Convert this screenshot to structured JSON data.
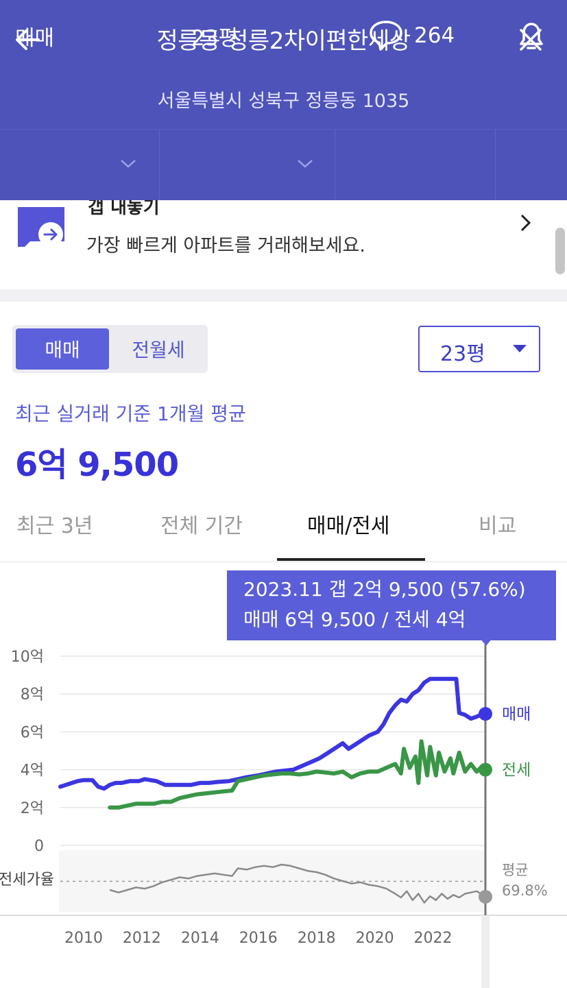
{
  "header": {
    "title": "정릉동 정릉2차이편한세상",
    "address": "서울특별시 성북구 정릉동 1035"
  },
  "controls": {
    "trade_type": "매매",
    "size": "23평",
    "comments_count": "264"
  },
  "banner": {
    "title": "갭 내놓기",
    "text": "가장 빠르게 아파트를 거래해보세요."
  },
  "segment": {
    "options": [
      "매매",
      "전월세"
    ],
    "selected": "매매"
  },
  "size_select": {
    "value": "23평"
  },
  "summary": {
    "caption": "최근 실거래 기준 1개월 평균",
    "price": "6억 9,500"
  },
  "tabs": [
    {
      "label": "최근 3년",
      "active": false
    },
    {
      "label": "전체 기간",
      "active": false
    },
    {
      "label": "매매/전세",
      "active": true
    },
    {
      "label": "비교",
      "active": false
    }
  ],
  "tooltip": {
    "line1": "2023.11  갭 2억 9,500 (57.6%)",
    "line2": "매매 6억 9,500 / 전세 4억"
  },
  "colors": {
    "header_bg": "#4e53b9",
    "accent": "#5d60db",
    "sale_line": "#3b36e0",
    "jeonse_line": "#3a9647",
    "ratio_line": "#8a8a8a"
  },
  "chart_data": {
    "type": "line",
    "y_unit": "억",
    "yticks": [
      "10억",
      "8억",
      "6억",
      "4억",
      "2억",
      "0"
    ],
    "ylim": [
      0,
      10
    ],
    "xlim": [
      2009.2,
      2024.6
    ],
    "xticks": [
      "2010",
      "2012",
      "2014",
      "2016",
      "2018",
      "2020",
      "2022"
    ],
    "series": [
      {
        "name": "매매",
        "points": [
          [
            2009.2,
            3.1
          ],
          [
            2009.4,
            3.2
          ],
          [
            2009.6,
            3.3
          ],
          [
            2009.8,
            3.4
          ],
          [
            2010.0,
            3.45
          ],
          [
            2010.3,
            3.45
          ],
          [
            2010.5,
            3.1
          ],
          [
            2010.7,
            3.0
          ],
          [
            2010.9,
            3.2
          ],
          [
            2011.1,
            3.3
          ],
          [
            2011.3,
            3.3
          ],
          [
            2011.6,
            3.4
          ],
          [
            2011.9,
            3.4
          ],
          [
            2012.1,
            3.5
          ],
          [
            2012.3,
            3.45
          ],
          [
            2012.5,
            3.4
          ],
          [
            2012.8,
            3.2
          ],
          [
            2013.1,
            3.2
          ],
          [
            2013.4,
            3.2
          ],
          [
            2013.7,
            3.2
          ],
          [
            2014.0,
            3.3
          ],
          [
            2014.3,
            3.3
          ],
          [
            2014.6,
            3.35
          ],
          [
            2015.0,
            3.4
          ],
          [
            2015.3,
            3.5
          ],
          [
            2015.6,
            3.6
          ],
          [
            2016.0,
            3.7
          ],
          [
            2016.3,
            3.8
          ],
          [
            2016.6,
            3.9
          ],
          [
            2016.9,
            3.95
          ],
          [
            2017.2,
            4.0
          ],
          [
            2017.5,
            4.2
          ],
          [
            2017.8,
            4.4
          ],
          [
            2018.1,
            4.6
          ],
          [
            2018.4,
            4.9
          ],
          [
            2018.7,
            5.2
          ],
          [
            2018.9,
            5.4
          ],
          [
            2019.1,
            5.1
          ],
          [
            2019.3,
            5.3
          ],
          [
            2019.5,
            5.5
          ],
          [
            2019.8,
            5.8
          ],
          [
            2020.1,
            6.0
          ],
          [
            2020.3,
            6.4
          ],
          [
            2020.5,
            7.0
          ],
          [
            2020.7,
            7.4
          ],
          [
            2020.9,
            7.7
          ],
          [
            2021.1,
            7.6
          ],
          [
            2021.3,
            8.0
          ],
          [
            2021.5,
            8.2
          ],
          [
            2021.7,
            8.6
          ],
          [
            2021.9,
            8.8
          ],
          [
            2022.2,
            8.8
          ],
          [
            2022.5,
            8.8
          ],
          [
            2022.8,
            8.8
          ],
          [
            2022.9,
            7.0
          ],
          [
            2023.1,
            6.9
          ],
          [
            2023.3,
            6.7
          ],
          [
            2023.5,
            6.8
          ],
          [
            2023.7,
            6.95
          ],
          [
            2023.8,
            6.95
          ]
        ]
      },
      {
        "name": "전세",
        "points": [
          [
            2010.9,
            2.0
          ],
          [
            2011.2,
            2.0
          ],
          [
            2011.5,
            2.1
          ],
          [
            2011.8,
            2.2
          ],
          [
            2012.1,
            2.2
          ],
          [
            2012.4,
            2.2
          ],
          [
            2012.7,
            2.3
          ],
          [
            2013.0,
            2.3
          ],
          [
            2013.3,
            2.5
          ],
          [
            2013.6,
            2.6
          ],
          [
            2013.9,
            2.7
          ],
          [
            2014.2,
            2.75
          ],
          [
            2014.5,
            2.8
          ],
          [
            2014.8,
            2.85
          ],
          [
            2015.1,
            2.9
          ],
          [
            2015.3,
            3.4
          ],
          [
            2015.6,
            3.5
          ],
          [
            2015.9,
            3.6
          ],
          [
            2016.2,
            3.7
          ],
          [
            2016.5,
            3.75
          ],
          [
            2016.8,
            3.8
          ],
          [
            2017.1,
            3.8
          ],
          [
            2017.4,
            3.75
          ],
          [
            2017.7,
            3.8
          ],
          [
            2018.0,
            3.9
          ],
          [
            2018.3,
            3.85
          ],
          [
            2018.6,
            3.8
          ],
          [
            2018.9,
            3.9
          ],
          [
            2019.2,
            3.6
          ],
          [
            2019.5,
            3.8
          ],
          [
            2019.8,
            3.9
          ],
          [
            2020.1,
            3.9
          ],
          [
            2020.4,
            4.1
          ],
          [
            2020.7,
            4.3
          ],
          [
            2020.9,
            3.8
          ],
          [
            2021.0,
            5.1
          ],
          [
            2021.2,
            4.1
          ],
          [
            2021.4,
            4.7
          ],
          [
            2021.5,
            3.3
          ],
          [
            2021.6,
            5.5
          ],
          [
            2021.8,
            3.7
          ],
          [
            2021.9,
            5.2
          ],
          [
            2022.1,
            3.7
          ],
          [
            2022.2,
            4.9
          ],
          [
            2022.4,
            3.9
          ],
          [
            2022.6,
            4.6
          ],
          [
            2022.7,
            3.8
          ],
          [
            2022.9,
            4.9
          ],
          [
            2023.1,
            3.9
          ],
          [
            2023.3,
            4.3
          ],
          [
            2023.5,
            3.9
          ],
          [
            2023.7,
            4.2
          ],
          [
            2023.8,
            4.0
          ]
        ]
      }
    ],
    "end_labels": [
      "매매",
      "전세"
    ],
    "ratio_panel": {
      "label": "전세가율",
      "avg_label_line1": "평균",
      "avg_label_line2": "69.8%",
      "avg_value": 69.8,
      "ylim": [
        50,
        90
      ],
      "points": [
        [
          2010.9,
          63
        ],
        [
          2011.2,
          61
        ],
        [
          2011.5,
          63
        ],
        [
          2011.8,
          65
        ],
        [
          2012.1,
          64
        ],
        [
          2012.4,
          66
        ],
        [
          2012.7,
          69
        ],
        [
          2013.0,
          71
        ],
        [
          2013.3,
          73
        ],
        [
          2013.6,
          72
        ],
        [
          2013.9,
          74
        ],
        [
          2014.2,
          75
        ],
        [
          2014.5,
          76
        ],
        [
          2014.8,
          75
        ],
        [
          2015.1,
          74
        ],
        [
          2015.3,
          80
        ],
        [
          2015.6,
          79
        ],
        [
          2015.9,
          81
        ],
        [
          2016.2,
          82
        ],
        [
          2016.5,
          81
        ],
        [
          2016.8,
          83
        ],
        [
          2017.1,
          82
        ],
        [
          2017.4,
          80
        ],
        [
          2017.7,
          78
        ],
        [
          2018.0,
          77
        ],
        [
          2018.3,
          75
        ],
        [
          2018.6,
          72
        ],
        [
          2018.9,
          70
        ],
        [
          2019.2,
          68
        ],
        [
          2019.5,
          69
        ],
        [
          2019.8,
          67
        ],
        [
          2020.1,
          66
        ],
        [
          2020.4,
          64
        ],
        [
          2020.7,
          60
        ],
        [
          2020.9,
          57
        ],
        [
          2021.1,
          62
        ],
        [
          2021.3,
          55
        ],
        [
          2021.5,
          60
        ],
        [
          2021.7,
          53
        ],
        [
          2021.9,
          58
        ],
        [
          2022.1,
          55
        ],
        [
          2022.3,
          60
        ],
        [
          2022.5,
          56
        ],
        [
          2022.7,
          59
        ],
        [
          2022.9,
          57
        ],
        [
          2023.1,
          60
        ],
        [
          2023.3,
          61
        ],
        [
          2023.5,
          62
        ],
        [
          2023.8,
          57.6
        ]
      ]
    },
    "cursor_x": 2023.8
  }
}
